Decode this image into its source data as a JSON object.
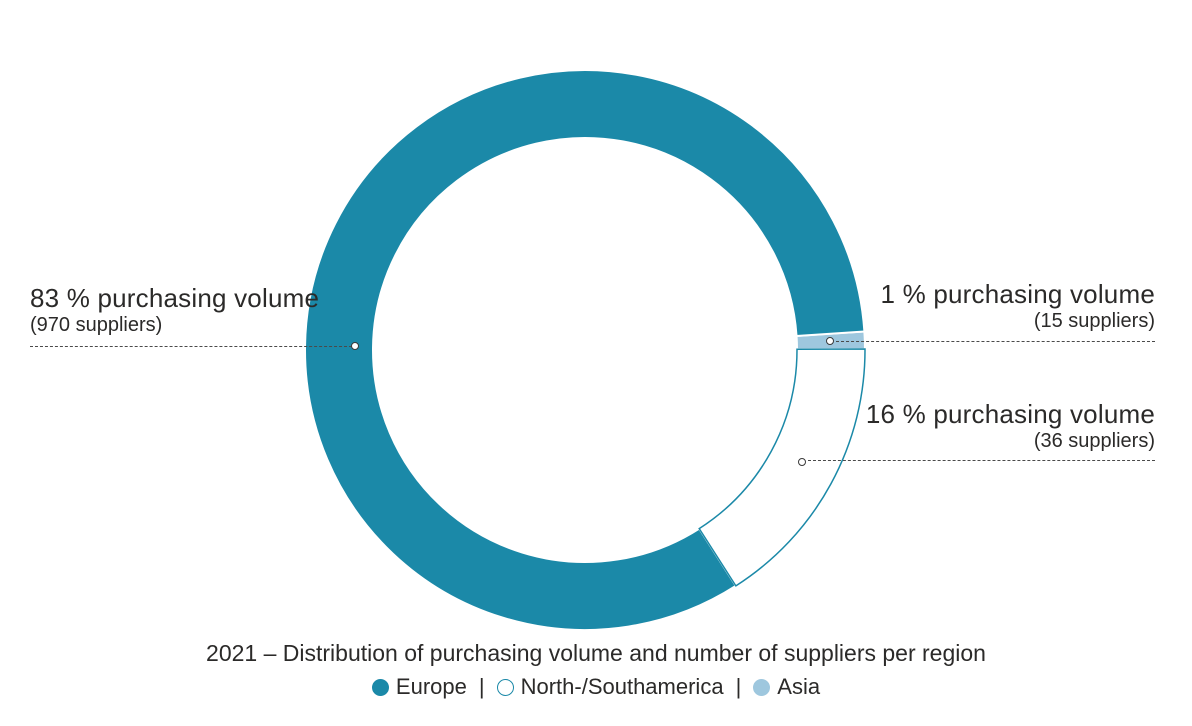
{
  "chart_data": {
    "type": "pie",
    "variant": "donut",
    "title": "2021 – Distribution of purchasing volume and number of suppliers per region",
    "start_angle_deg": -3.8,
    "segment_order": [
      "Asia",
      "North-/Southamerica",
      "Europe"
    ],
    "series": [
      {
        "name": "Europe",
        "percent": 83,
        "suppliers": 970,
        "color": "#1b89a8",
        "style": "filled"
      },
      {
        "name": "North-/Southamerica",
        "percent": 16,
        "suppliers": 36,
        "color": "#ffffff",
        "stroke": "#1b89a8",
        "style": "outlined"
      },
      {
        "name": "Asia",
        "percent": 1,
        "suppliers": 15,
        "color": "#9ec7de",
        "style": "filled"
      }
    ],
    "annotations": [
      {
        "series": "Europe",
        "label": "83 % purchasing volume",
        "sub": "(970 suppliers)"
      },
      {
        "series": "Asia",
        "label": "1 % purchasing volume",
        "sub": "(15 suppliers)"
      },
      {
        "series": "North-/Southamerica",
        "label": "16 % purchasing volume",
        "sub": "(36 suppliers)"
      }
    ],
    "legend": {
      "position": "bottom",
      "separator": "|",
      "items": [
        "Europe",
        "North-/Southamerica",
        "Asia"
      ]
    }
  }
}
